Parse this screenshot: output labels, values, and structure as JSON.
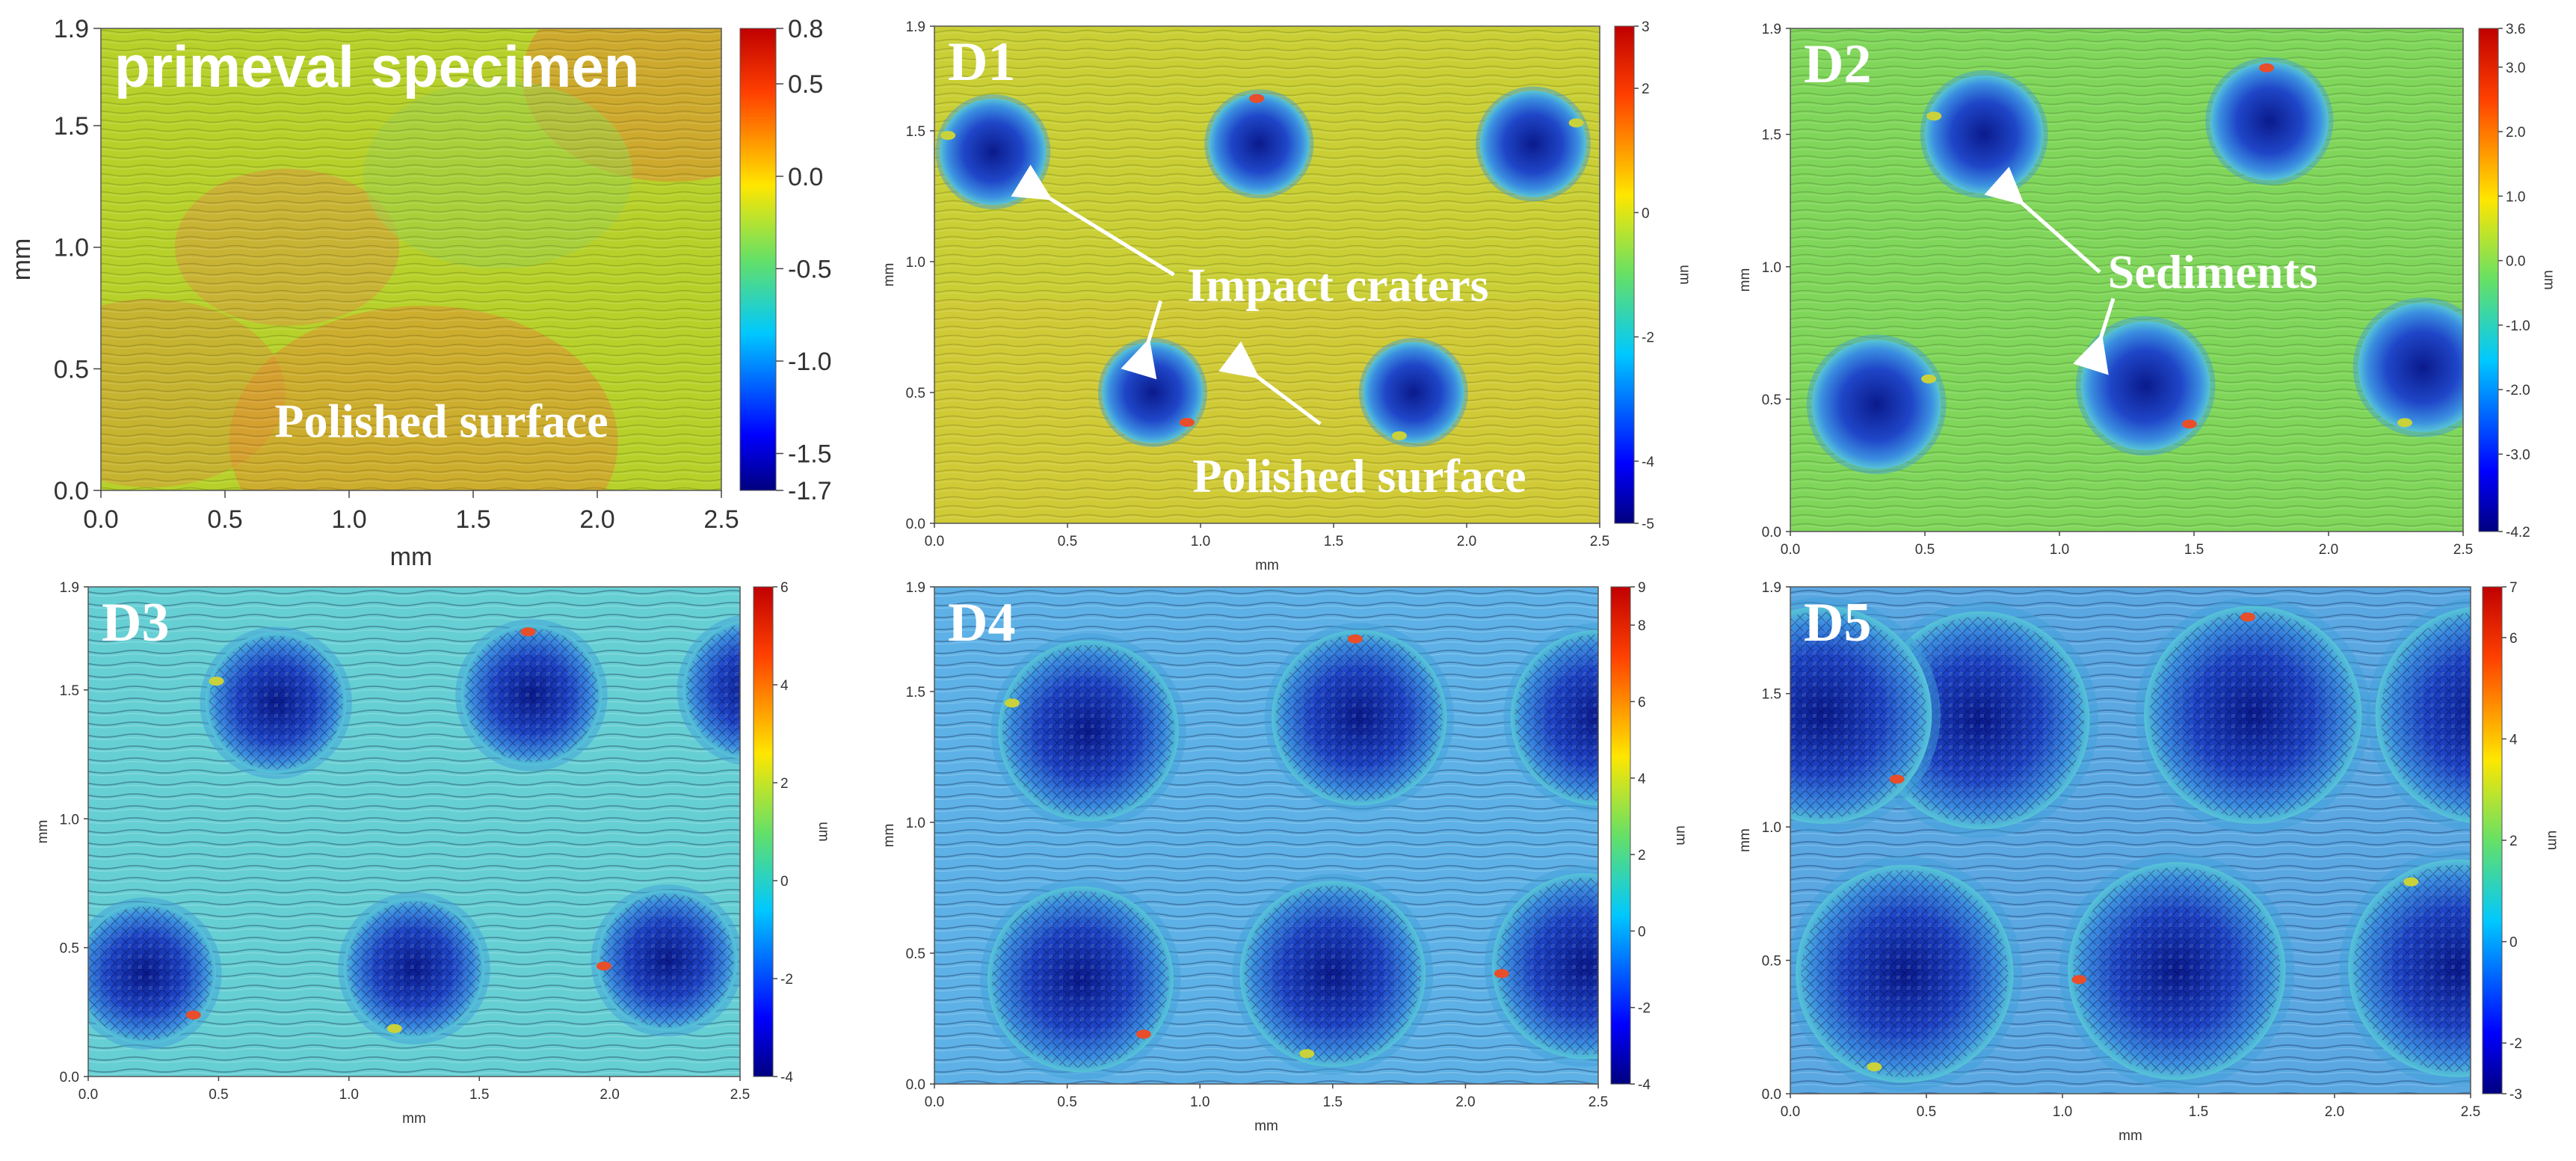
{
  "chart_data": [
    {
      "type": "heatmap",
      "panel": "primeval",
      "title": "primeval specimen",
      "xlabel": "mm",
      "ylabel": "mm",
      "xlim": [
        0,
        2.5
      ],
      "ylim": [
        0,
        1.9
      ],
      "xticks": [
        "0.0",
        "0.5",
        "1.0",
        "1.5",
        "2.0",
        "2.5"
      ],
      "yticks": [
        "0.0",
        "0.5",
        "1.0",
        "1.5",
        "1.9"
      ],
      "colorbar": {
        "ticks": [
          "0.8",
          "0.5",
          "0.0",
          "-0.5",
          "-1.0",
          "-1.5",
          "-1.7"
        ],
        "range": [
          -1.7,
          0.8
        ],
        "label": ""
      },
      "surface": "polished",
      "craters": [],
      "annotations": [
        {
          "text": "Polished surface"
        }
      ]
    },
    {
      "type": "heatmap",
      "panel": "D1",
      "title": "D1",
      "xlabel": "mm",
      "ylabel": "mm",
      "xlim": [
        0,
        2.5
      ],
      "ylim": [
        0,
        1.9
      ],
      "xticks": [
        "0.0",
        "0.5",
        "1.0",
        "1.5",
        "2.0",
        "2.5"
      ],
      "yticks": [
        "0.0",
        "0.5",
        "1.0",
        "1.5",
        "1.9"
      ],
      "colorbar": {
        "ticks": [
          "3",
          "2",
          "0",
          "-2",
          "-4",
          "-5"
        ],
        "range": [
          -5,
          3
        ],
        "label": "um"
      },
      "surface": "polished",
      "craters": [
        {
          "x": 0.22,
          "y": 1.42,
          "r": 0.2
        },
        {
          "x": 1.22,
          "y": 1.45,
          "r": 0.19
        },
        {
          "x": 2.25,
          "y": 1.45,
          "r": 0.2
        },
        {
          "x": 0.82,
          "y": 0.5,
          "r": 0.19
        },
        {
          "x": 1.8,
          "y": 0.5,
          "r": 0.19
        }
      ],
      "annotations": [
        {
          "text": "Impact craters"
        },
        {
          "text": "Polished surface"
        }
      ]
    },
    {
      "type": "heatmap",
      "panel": "D2",
      "title": "D2",
      "xlabel": "",
      "ylabel": "mm",
      "xlim": [
        0,
        2.5
      ],
      "ylim": [
        0,
        1.9
      ],
      "xticks": [
        "0.0",
        "0.5",
        "1.0",
        "1.5",
        "2.0",
        "2.5"
      ],
      "yticks": [
        "0.0",
        "0.5",
        "1.0",
        "1.5",
        "1.9"
      ],
      "colorbar": {
        "ticks": [
          "3.6",
          "3.0",
          "2.0",
          "1.0",
          "0.0",
          "-1.0",
          "-2.0",
          "-3.0",
          "-4.2"
        ],
        "range": [
          -4.2,
          3.6
        ],
        "label": "um"
      },
      "surface": "polished",
      "craters": [
        {
          "x": 0.72,
          "y": 1.5,
          "r": 0.22
        },
        {
          "x": 1.78,
          "y": 1.55,
          "r": 0.22
        },
        {
          "x": 0.32,
          "y": 0.48,
          "r": 0.24
        },
        {
          "x": 1.32,
          "y": 0.55,
          "r": 0.24
        },
        {
          "x": 2.35,
          "y": 0.62,
          "r": 0.24
        }
      ],
      "annotations": [
        {
          "text": "Sediments"
        }
      ]
    },
    {
      "type": "heatmap",
      "panel": "D3",
      "title": "D3",
      "xlabel": "mm",
      "ylabel": "mm",
      "xlim": [
        0,
        2.5
      ],
      "ylim": [
        0,
        1.9
      ],
      "xticks": [
        "0.0",
        "0.5",
        "1.0",
        "1.5",
        "2.0",
        "2.5"
      ],
      "yticks": [
        "0.0",
        "0.5",
        "1.0",
        "1.5",
        "1.9"
      ],
      "colorbar": {
        "ticks": [
          "6",
          "4",
          "2",
          "0",
          "-2",
          "-4"
        ],
        "range": [
          -4,
          6
        ],
        "label": "um"
      },
      "surface": "rough",
      "craters": [
        {
          "x": 0.72,
          "y": 1.45,
          "r": 0.27
        },
        {
          "x": 1.7,
          "y": 1.48,
          "r": 0.27
        },
        {
          "x": 2.55,
          "y": 1.5,
          "r": 0.27
        },
        {
          "x": 0.22,
          "y": 0.4,
          "r": 0.27
        },
        {
          "x": 1.25,
          "y": 0.42,
          "r": 0.27
        },
        {
          "x": 2.22,
          "y": 0.45,
          "r": 0.27
        }
      ],
      "annotations": []
    },
    {
      "type": "heatmap",
      "panel": "D4",
      "title": "D4",
      "xlabel": "mm",
      "ylabel": "mm",
      "xlim": [
        0,
        2.5
      ],
      "ylim": [
        0,
        1.9
      ],
      "xticks": [
        "0.0",
        "0.5",
        "1.0",
        "1.5",
        "2.0",
        "2.5"
      ],
      "yticks": [
        "0.0",
        "0.5",
        "1.0",
        "1.5",
        "1.9"
      ],
      "colorbar": {
        "ticks": [
          "9",
          "8",
          "6",
          "4",
          "2",
          "0",
          "-2",
          "-4"
        ],
        "range": [
          -4,
          9
        ],
        "label": "um"
      },
      "surface": "rough",
      "craters": [
        {
          "x": 0.58,
          "y": 1.35,
          "r": 0.34
        },
        {
          "x": 1.6,
          "y": 1.4,
          "r": 0.33
        },
        {
          "x": 2.5,
          "y": 1.4,
          "r": 0.33
        },
        {
          "x": 0.55,
          "y": 0.4,
          "r": 0.35
        },
        {
          "x": 1.5,
          "y": 0.42,
          "r": 0.35
        },
        {
          "x": 2.45,
          "y": 0.45,
          "r": 0.35
        }
      ],
      "annotations": []
    },
    {
      "type": "heatmap",
      "panel": "D5",
      "title": "D5",
      "xlabel": "mm",
      "ylabel": "mm",
      "xlim": [
        0,
        2.5
      ],
      "ylim": [
        0,
        1.9
      ],
      "xticks": [
        "0.0",
        "0.5",
        "1.0",
        "1.5",
        "2.0",
        "2.5"
      ],
      "yticks": [
        "0.0",
        "0.5",
        "1.0",
        "1.5",
        "1.9"
      ],
      "colorbar": {
        "ticks": [
          "7",
          "6",
          "4",
          "2",
          "0",
          "-2",
          "-3"
        ],
        "range": [
          -3,
          7
        ],
        "label": "um"
      },
      "surface": "rough",
      "craters": [
        {
          "x": 0.7,
          "y": 1.4,
          "r": 0.4
        },
        {
          "x": 1.7,
          "y": 1.42,
          "r": 0.4
        },
        {
          "x": 2.55,
          "y": 1.42,
          "r": 0.4
        },
        {
          "x": 0.12,
          "y": 1.42,
          "r": 0.4
        },
        {
          "x": 0.42,
          "y": 0.45,
          "r": 0.4
        },
        {
          "x": 1.42,
          "y": 0.46,
          "r": 0.4
        },
        {
          "x": 2.45,
          "y": 0.47,
          "r": 0.4
        }
      ],
      "annotations": []
    }
  ]
}
